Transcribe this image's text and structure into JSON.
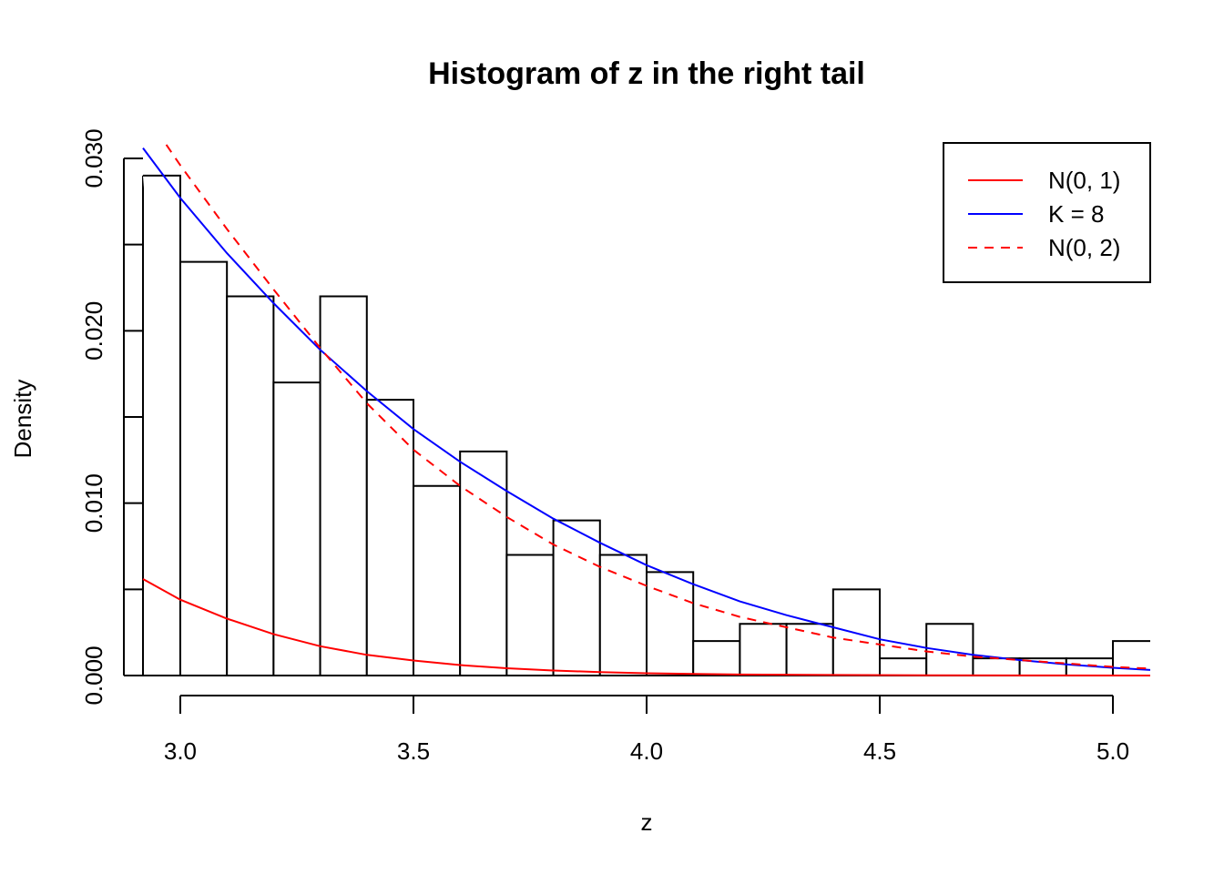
{
  "chart_data": {
    "type": "histogram",
    "title": "Histogram of z in the right tail",
    "xlabel": "z",
    "ylabel": "Density",
    "xlim": [
      2.92,
      5.08
    ],
    "ylim": [
      0.0,
      0.03
    ],
    "x_ticks": [
      3.0,
      3.5,
      4.0,
      4.5,
      5.0
    ],
    "x_tick_labels": [
      "3.0",
      "3.5",
      "4.0",
      "4.5",
      "5.0"
    ],
    "y_ticks": [
      0.0,
      0.005,
      0.01,
      0.015,
      0.02,
      0.025,
      0.03
    ],
    "y_tick_labels": [
      "0.000",
      "",
      "0.010",
      "",
      "0.020",
      "",
      "0.030"
    ],
    "grid": false,
    "bins": [
      {
        "x0": 2.9,
        "x1": 3.0,
        "density": 0.029
      },
      {
        "x0": 3.0,
        "x1": 3.1,
        "density": 0.024
      },
      {
        "x0": 3.1,
        "x1": 3.2,
        "density": 0.022
      },
      {
        "x0": 3.2,
        "x1": 3.3,
        "density": 0.017
      },
      {
        "x0": 3.3,
        "x1": 3.4,
        "density": 0.022
      },
      {
        "x0": 3.4,
        "x1": 3.5,
        "density": 0.016
      },
      {
        "x0": 3.5,
        "x1": 3.6,
        "density": 0.011
      },
      {
        "x0": 3.6,
        "x1": 3.7,
        "density": 0.013
      },
      {
        "x0": 3.7,
        "x1": 3.8,
        "density": 0.007
      },
      {
        "x0": 3.8,
        "x1": 3.9,
        "density": 0.009
      },
      {
        "x0": 3.9,
        "x1": 4.0,
        "density": 0.007
      },
      {
        "x0": 4.0,
        "x1": 4.1,
        "density": 0.006
      },
      {
        "x0": 4.1,
        "x1": 4.2,
        "density": 0.002
      },
      {
        "x0": 4.2,
        "x1": 4.3,
        "density": 0.003
      },
      {
        "x0": 4.3,
        "x1": 4.4,
        "density": 0.003
      },
      {
        "x0": 4.4,
        "x1": 4.5,
        "density": 0.005
      },
      {
        "x0": 4.5,
        "x1": 4.6,
        "density": 0.001
      },
      {
        "x0": 4.6,
        "x1": 4.7,
        "density": 0.003
      },
      {
        "x0": 4.7,
        "x1": 4.8,
        "density": 0.001
      },
      {
        "x0": 4.8,
        "x1": 4.9,
        "density": 0.001
      },
      {
        "x0": 4.9,
        "x1": 5.0,
        "density": 0.001
      },
      {
        "x0": 5.0,
        "x1": 5.1,
        "density": 0.002
      }
    ],
    "series": [
      {
        "name": "N(0, 1)",
        "color": "#ff0000",
        "dash": "solid",
        "x": [
          2.92,
          3.0,
          3.1,
          3.2,
          3.3,
          3.4,
          3.5,
          3.6,
          3.7,
          3.8,
          3.9,
          4.0,
          4.2,
          4.4,
          4.6,
          4.8,
          5.08
        ],
        "y": [
          0.0056,
          0.0044,
          0.0033,
          0.0024,
          0.0017,
          0.0012,
          0.00087,
          0.00061,
          0.00042,
          0.00029,
          0.0002,
          0.00013,
          6e-05,
          3e-05,
          1e-05,
          4e-06,
          0.0
        ]
      },
      {
        "name": "K = 8",
        "color": "#0000ff",
        "dash": "solid",
        "x": [
          2.92,
          3.0,
          3.1,
          3.2,
          3.3,
          3.4,
          3.5,
          3.6,
          3.7,
          3.8,
          3.9,
          4.0,
          4.1,
          4.2,
          4.3,
          4.4,
          4.5,
          4.6,
          4.7,
          4.8,
          4.9,
          5.0,
          5.08
        ],
        "y": [
          0.0306,
          0.0277,
          0.0245,
          0.0216,
          0.0189,
          0.0165,
          0.0143,
          0.0124,
          0.0107,
          0.0091,
          0.0077,
          0.0064,
          0.0053,
          0.0043,
          0.0035,
          0.0028,
          0.0021,
          0.0016,
          0.0012,
          0.0009,
          0.00065,
          0.00045,
          0.00032
        ]
      },
      {
        "name": "N(0, 2)",
        "color": "#ff0000",
        "dash": "dashed",
        "x": [
          2.97,
          3.0,
          3.1,
          3.2,
          3.3,
          3.4,
          3.5,
          3.6,
          3.7,
          3.8,
          3.9,
          4.0,
          4.1,
          4.2,
          4.3,
          4.4,
          4.5,
          4.6,
          4.7,
          4.8,
          4.9,
          5.0,
          5.08
        ],
        "y": [
          0.0308,
          0.0296,
          0.0259,
          0.0224,
          0.019,
          0.0158,
          0.0131,
          0.011,
          0.0092,
          0.0076,
          0.0063,
          0.0052,
          0.0042,
          0.0034,
          0.0028,
          0.0022,
          0.0018,
          0.0014,
          0.0011,
          0.0009,
          0.0007,
          0.0005,
          0.0004
        ]
      }
    ],
    "legend": {
      "placement": "top-right",
      "entries": [
        {
          "label": "N(0, 1)",
          "color": "#ff0000",
          "dash": "solid"
        },
        {
          "label": "K = 8",
          "color": "#0000ff",
          "dash": "solid"
        },
        {
          "label": "N(0, 2)",
          "color": "#ff0000",
          "dash": "dashed"
        }
      ]
    }
  }
}
